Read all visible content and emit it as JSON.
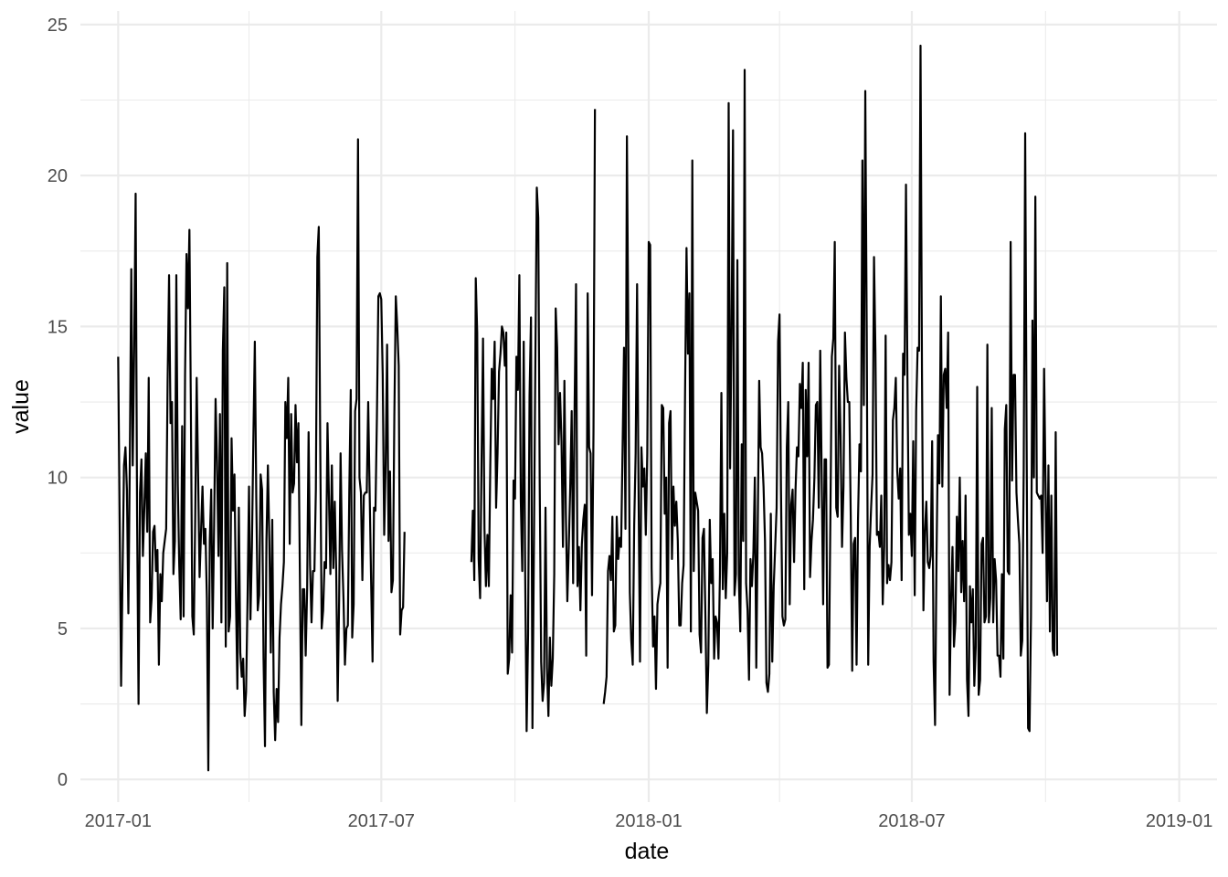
{
  "chart_data": {
    "type": "line",
    "title": "",
    "xlabel": "date",
    "ylabel": "value",
    "x_axis_type": "date",
    "xlim": [
      "2016-12-06",
      "2019-01-27"
    ],
    "ylim": [
      -0.75,
      25.45
    ],
    "x_major_ticks": [
      "2017-01-01",
      "2017-07-01",
      "2018-01-01",
      "2018-07-01",
      "2019-01-01"
    ],
    "x_tick_labels": [
      "2017-01",
      "2017-07",
      "2018-01",
      "2018-07",
      "2019-01"
    ],
    "x_minor_ticks": [
      "2017-04-01",
      "2017-10-01",
      "2018-04-01",
      "2018-10-01"
    ],
    "y_ticks": [
      0,
      5,
      10,
      15,
      20,
      25
    ],
    "y_tick_labels": [
      "0",
      "5",
      "10",
      "15",
      "20",
      "25"
    ],
    "y_minor_ticks": [
      2.5,
      7.5,
      12.5,
      17.5,
      22.5
    ],
    "grid": true,
    "legend": "none",
    "line_color": "#000000",
    "grid_color": "#ebebeb",
    "series": [
      {
        "segments": [
          {
            "start": "2017-01-01",
            "values": [
              14.0,
              8.6,
              3.1,
              6.8,
              10.4,
              11.0,
              9.6,
              5.5,
              10.6,
              16.9,
              10.4,
              14.3,
              19.4,
              8.7,
              2.5,
              9.5,
              10.6,
              7.4,
              9.0,
              10.8,
              8.2,
              13.3,
              5.2,
              6.0,
              8.2,
              8.4,
              6.9,
              7.6,
              3.8,
              6.8,
              5.9,
              7.5,
              7.9,
              8.3,
              13.2,
              16.7,
              11.8,
              12.5,
              6.8,
              7.9,
              16.7,
              9.8,
              7.1,
              5.3,
              11.7,
              5.4,
              13.4,
              17.4,
              15.6,
              18.2,
              12.3,
              5.4,
              4.8,
              8.7,
              13.3,
              10.0,
              6.7,
              8.2,
              9.7,
              7.8,
              8.3,
              6.0,
              0.3,
              7.9,
              9.6,
              5.0,
              8.4,
              12.6,
              10.5,
              7.4,
              12.1,
              5.2,
              14.2,
              16.3,
              4.4,
              17.1,
              4.9,
              5.4,
              11.3,
              8.9,
              10.1,
              6.1,
              3.0,
              9.0,
              4.2,
              3.4,
              4.0,
              2.1,
              2.9,
              6.0,
              9.7,
              5.3,
              7.7,
              11.3,
              14.5,
              9.3,
              5.6,
              6.1,
              10.1,
              9.6,
              4.0,
              1.1,
              7.9,
              10.4,
              7.9,
              4.2,
              8.6,
              2.9,
              1.3,
              3.0,
              1.9,
              4.7,
              5.8,
              6.4,
              7.2,
              12.5,
              11.3,
              13.3,
              7.8,
              12.1,
              9.5,
              9.8,
              12.4,
              10.5,
              11.8,
              6.8,
              1.8,
              6.3,
              6.3,
              4.1,
              6.3,
              11.5,
              7.1,
              5.2,
              6.9,
              6.9,
              9.6,
              17.3,
              18.3,
              11.1,
              5.0,
              5.6,
              7.2,
              7.0,
              11.8,
              9.3,
              6.8,
              10.4,
              7.0,
              9.2,
              6.9,
              2.6,
              5.9,
              10.8,
              7.6,
              6.0,
              3.8,
              5.0,
              5.1,
              9.6,
              12.9,
              4.7,
              5.8,
              12.2,
              12.6,
              21.2,
              10.0,
              9.5,
              6.6,
              9.4,
              9.5,
              9.5,
              12.5,
              9.5,
              6.6,
              3.9,
              9.0,
              8.9,
              12.0,
              16.0,
              16.1,
              15.9,
              13.4,
              8.1,
              10.4,
              14.4,
              7.9,
              10.2,
              6.2,
              6.6,
              12.1,
              16.0,
              15.0,
              13.7,
              4.8,
              5.6,
              5.7,
              8.2
            ]
          },
          {
            "start": "2017-09-01",
            "values": [
              7.2,
              8.9,
              6.6,
              16.6,
              14.8,
              7.3,
              6.0,
              10.6,
              14.6,
              8.3,
              6.4,
              8.1,
              6.4,
              10.4,
              13.6,
              12.6,
              14.5,
              9.0,
              10.8,
              13.5,
              14.1,
              15.0,
              14.8,
              13.7,
              14.8,
              3.5,
              4.0,
              6.1,
              4.2,
              9.9,
              9.3,
              14.0,
              12.9,
              16.7,
              9.2,
              6.9,
              14.5,
              6.8,
              1.6,
              4.8,
              12.7,
              15.3,
              1.7,
              7.6,
              13.8,
              19.6,
              18.6,
              9.8,
              3.9,
              2.6,
              3.2,
              9.0,
              3.7,
              2.1,
              4.7,
              3.1,
              4.0,
              6.8,
              15.6,
              14.3,
              11.1,
              12.8,
              11.2,
              7.7,
              13.2,
              8.8,
              5.9,
              7.7,
              9.7,
              12.2,
              6.5,
              12.3,
              16.4,
              6.4,
              7.7,
              5.6,
              7.8,
              8.6,
              9.1,
              4.1,
              16.1,
              11.0,
              10.8,
              6.1,
              11.5,
              22.2
            ]
          },
          {
            "start": "2017-12-01",
            "values": [
              2.5,
              2.9,
              3.4,
              6.9,
              7.4,
              6.6,
              8.7,
              4.9,
              5.1,
              8.7,
              7.3,
              8.0,
              7.7,
              10.9,
              14.3,
              8.3,
              21.3,
              14.4,
              6.2,
              4.6,
              3.8,
              8.4,
              10.8,
              16.4,
              9.6,
              3.9,
              11.0,
              9.7,
              10.3,
              8.1,
              10.8,
              17.8,
              17.7,
              7.0,
              4.4,
              5.4,
              3.0,
              5.8,
              6.2,
              6.5,
              12.4,
              12.3,
              8.8,
              10.0,
              3.7,
              11.8,
              12.2,
              7.3,
              9.7,
              8.4,
              9.2,
              7.9,
              5.1,
              5.1,
              6.5,
              7.1,
              12.8,
              17.6,
              14.1,
              16.1,
              4.9,
              20.5,
              6.9,
              9.5,
              9.2,
              8.9,
              4.8,
              4.2,
              8.0,
              8.3,
              5.4,
              2.2,
              3.8,
              8.6,
              6.5,
              7.3,
              4.0,
              5.4,
              5.2,
              4.0,
              6.8,
              12.8,
              6.3,
              8.8,
              6.0,
              7.5,
              22.4,
              10.3,
              14.9,
              21.5,
              6.1,
              6.8,
              17.2,
              6.6,
              4.9,
              11.1,
              7.9,
              23.5,
              6.5,
              5.6,
              3.3,
              7.3,
              6.4,
              7.5,
              10.0,
              3.7,
              8.3,
              13.2,
              11.0,
              10.8,
              9.7,
              7.9,
              3.2,
              2.9,
              3.5,
              8.8,
              3.9,
              6.4,
              7.7,
              9.0,
              14.5,
              15.4,
              9.6,
              5.4,
              5.1,
              5.3,
              11.0,
              12.5,
              5.8,
              9.1,
              9.6,
              7.2,
              9.6,
              11.0,
              10.7,
              13.1,
              12.3,
              13.8,
              6.3,
              12.9,
              10.7,
              13.8,
              6.7,
              7.9,
              8.6,
              10.0,
              12.4,
              12.5,
              9.0,
              14.2,
              10.1,
              5.8,
              10.6,
              10.6,
              3.7,
              3.8,
              8.7,
              14.0,
              14.6,
              17.8,
              9.0,
              8.7,
              13.7,
              11.4,
              7.7,
              9.7,
              14.8,
              13.3,
              12.5,
              12.5,
              8.7,
              3.6,
              7.8,
              8.0,
              3.8,
              8.6,
              11.1,
              10.2,
              20.5,
              12.4,
              22.8,
              14.7,
              3.8,
              7.7,
              9.0,
              10.1,
              17.3,
              14.1,
              8.1,
              8.2,
              7.7,
              9.4,
              5.8,
              7.7,
              14.7,
              6.5,
              7.1,
              6.6,
              7.2,
              11.9,
              12.3,
              13.3,
              10.2,
              9.3,
              10.3,
              6.6,
              14.1,
              13.4,
              19.7,
              13.3,
              8.1,
              8.8,
              7.4,
              11.2,
              6.1,
              12.2,
              14.3,
              14.2,
              24.3,
              13.5,
              5.6,
              8.2,
              9.2,
              7.2,
              7.0,
              7.4,
              11.2,
              3.9,
              1.8,
              7.3,
              11.4,
              9.8,
              16.0,
              9.7,
              13.4,
              13.6,
              12.3,
              14.8,
              2.8,
              5.9,
              7.7,
              4.4,
              5.2,
              8.7,
              6.9,
              10.0,
              6.2,
              7.9,
              5.9,
              9.4,
              3.3,
              2.1,
              6.4,
              5.2,
              6.3,
              3.1,
              4.4,
              13.0,
              2.8,
              3.3,
              7.8,
              8.0,
              5.2,
              5.4,
              14.4,
              5.2,
              6.0,
              12.3,
              5.2,
              7.3,
              6.6,
              4.1,
              4.1,
              3.4,
              6.8,
              4.0,
              11.6,
              12.4,
              6.9,
              6.8,
              17.8,
              9.9,
              13.4,
              13.4,
              9.5,
              8.6,
              7.8,
              4.1,
              4.6,
              10.3,
              21.4,
              11.2,
              1.7,
              1.6,
              5.4,
              15.2,
              10.0,
              19.3,
              9.5,
              9.4,
              9.3,
              9.4,
              7.5,
              13.6,
              9.8,
              5.9,
              10.4,
              4.9,
              9.4,
              4.3,
              4.1,
              11.5,
              4.1
            ]
          }
        ]
      }
    ]
  }
}
